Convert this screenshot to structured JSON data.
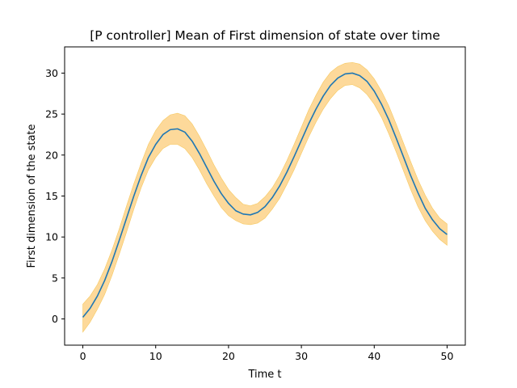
{
  "chart_data": {
    "type": "line",
    "title": "[P controller] Mean of First dimension of state over time",
    "xlabel": "Time t",
    "ylabel": "First dimension of the state",
    "xlim": [
      -2.5,
      52.5
    ],
    "ylim": [
      -3.2,
      33.2
    ],
    "xticks": [
      0,
      10,
      20,
      30,
      40,
      50
    ],
    "yticks": [
      0,
      5,
      10,
      15,
      20,
      25,
      30
    ],
    "grid": false,
    "colors": {
      "line": "#1f77b4",
      "band": "#fdd99a",
      "band_edge": "#f6c85f"
    },
    "series": [
      {
        "x": [
          0,
          1,
          2,
          3,
          4,
          5,
          6,
          7,
          8,
          9,
          10,
          11,
          12,
          13,
          14,
          15,
          16,
          17,
          18,
          19,
          20,
          21,
          22,
          23,
          24,
          25,
          26,
          27,
          28,
          29,
          30,
          31,
          32,
          33,
          34,
          35,
          36,
          37,
          38,
          39,
          40,
          41,
          42,
          43,
          44,
          45,
          46,
          47,
          48,
          49,
          50
        ],
        "mean": [
          0.2,
          1.3,
          2.8,
          4.7,
          7.0,
          9.6,
          12.3,
          15.0,
          17.5,
          19.7,
          21.3,
          22.5,
          23.1,
          23.2,
          22.8,
          21.7,
          20.2,
          18.5,
          16.8,
          15.3,
          14.1,
          13.2,
          12.8,
          12.7,
          13.0,
          13.7,
          14.8,
          16.2,
          17.9,
          19.8,
          21.8,
          23.8,
          25.6,
          27.2,
          28.5,
          29.4,
          29.9,
          30.0,
          29.7,
          29.0,
          27.8,
          26.2,
          24.3,
          22.1,
          19.8,
          17.5,
          15.4,
          13.5,
          12.1,
          11.0,
          10.3
        ],
        "upper": [
          1.8,
          2.8,
          4.2,
          6.1,
          8.4,
          11.0,
          13.8,
          16.5,
          19.0,
          21.3,
          23.0,
          24.2,
          24.9,
          25.1,
          24.8,
          23.8,
          22.3,
          20.6,
          18.8,
          17.2,
          15.8,
          14.8,
          14.0,
          13.8,
          14.1,
          14.9,
          16.0,
          17.5,
          19.3,
          21.3,
          23.4,
          25.5,
          27.3,
          28.9,
          30.1,
          30.8,
          31.2,
          31.3,
          31.1,
          30.4,
          29.3,
          27.8,
          26.0,
          23.8,
          21.5,
          19.2,
          17.0,
          15.1,
          13.5,
          12.3,
          11.6
        ],
        "lower": [
          -1.6,
          -0.4,
          1.2,
          3.0,
          5.3,
          7.9,
          10.6,
          13.4,
          16.0,
          18.2,
          19.7,
          20.8,
          21.3,
          21.3,
          20.8,
          19.7,
          18.2,
          16.5,
          15.0,
          13.6,
          12.6,
          12.0,
          11.6,
          11.5,
          11.7,
          12.3,
          13.4,
          14.7,
          16.4,
          18.2,
          20.2,
          22.2,
          24.0,
          25.6,
          26.9,
          27.9,
          28.5,
          28.6,
          28.2,
          27.4,
          26.2,
          24.6,
          22.6,
          20.4,
          18.1,
          15.8,
          13.7,
          12.0,
          10.7,
          9.7,
          9.0
        ]
      }
    ]
  }
}
